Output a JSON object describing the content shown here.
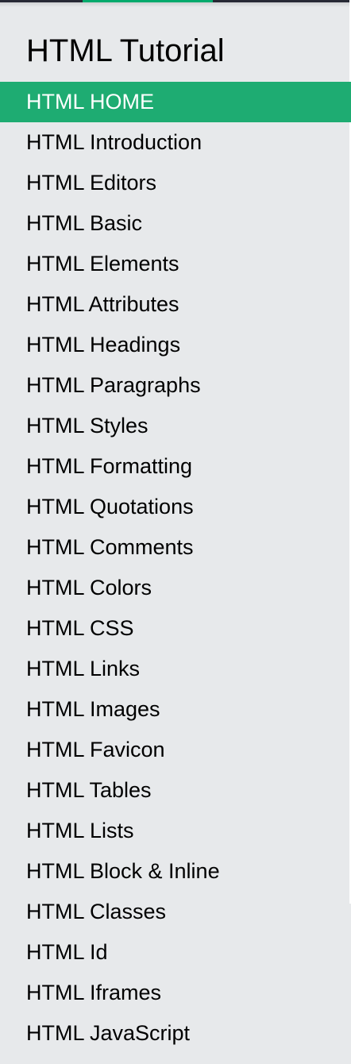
{
  "sidebar": {
    "title": "HTML Tutorial",
    "items": [
      {
        "label": "HTML HOME",
        "active": true
      },
      {
        "label": "HTML Introduction"
      },
      {
        "label": "HTML Editors"
      },
      {
        "label": "HTML Basic"
      },
      {
        "label": "HTML Elements"
      },
      {
        "label": "HTML Attributes"
      },
      {
        "label": "HTML Headings"
      },
      {
        "label": "HTML Paragraphs"
      },
      {
        "label": "HTML Styles"
      },
      {
        "label": "HTML Formatting"
      },
      {
        "label": "HTML Quotations"
      },
      {
        "label": "HTML Comments"
      },
      {
        "label": "HTML Colors"
      },
      {
        "label": "HTML CSS"
      },
      {
        "label": "HTML Links"
      },
      {
        "label": "HTML Images"
      },
      {
        "label": "HTML Favicon"
      },
      {
        "label": "HTML Tables"
      },
      {
        "label": "HTML Lists"
      },
      {
        "label": "HTML Block & Inline"
      },
      {
        "label": "HTML Classes"
      },
      {
        "label": "HTML Id"
      },
      {
        "label": "HTML Iframes"
      },
      {
        "label": "HTML JavaScript"
      }
    ]
  },
  "colors": {
    "background": "#e7e9eb",
    "active_item": "#1eac72",
    "active_text": "#ffffff",
    "top_bar": "#282a35",
    "top_bar_accent": "#04aa6d"
  }
}
